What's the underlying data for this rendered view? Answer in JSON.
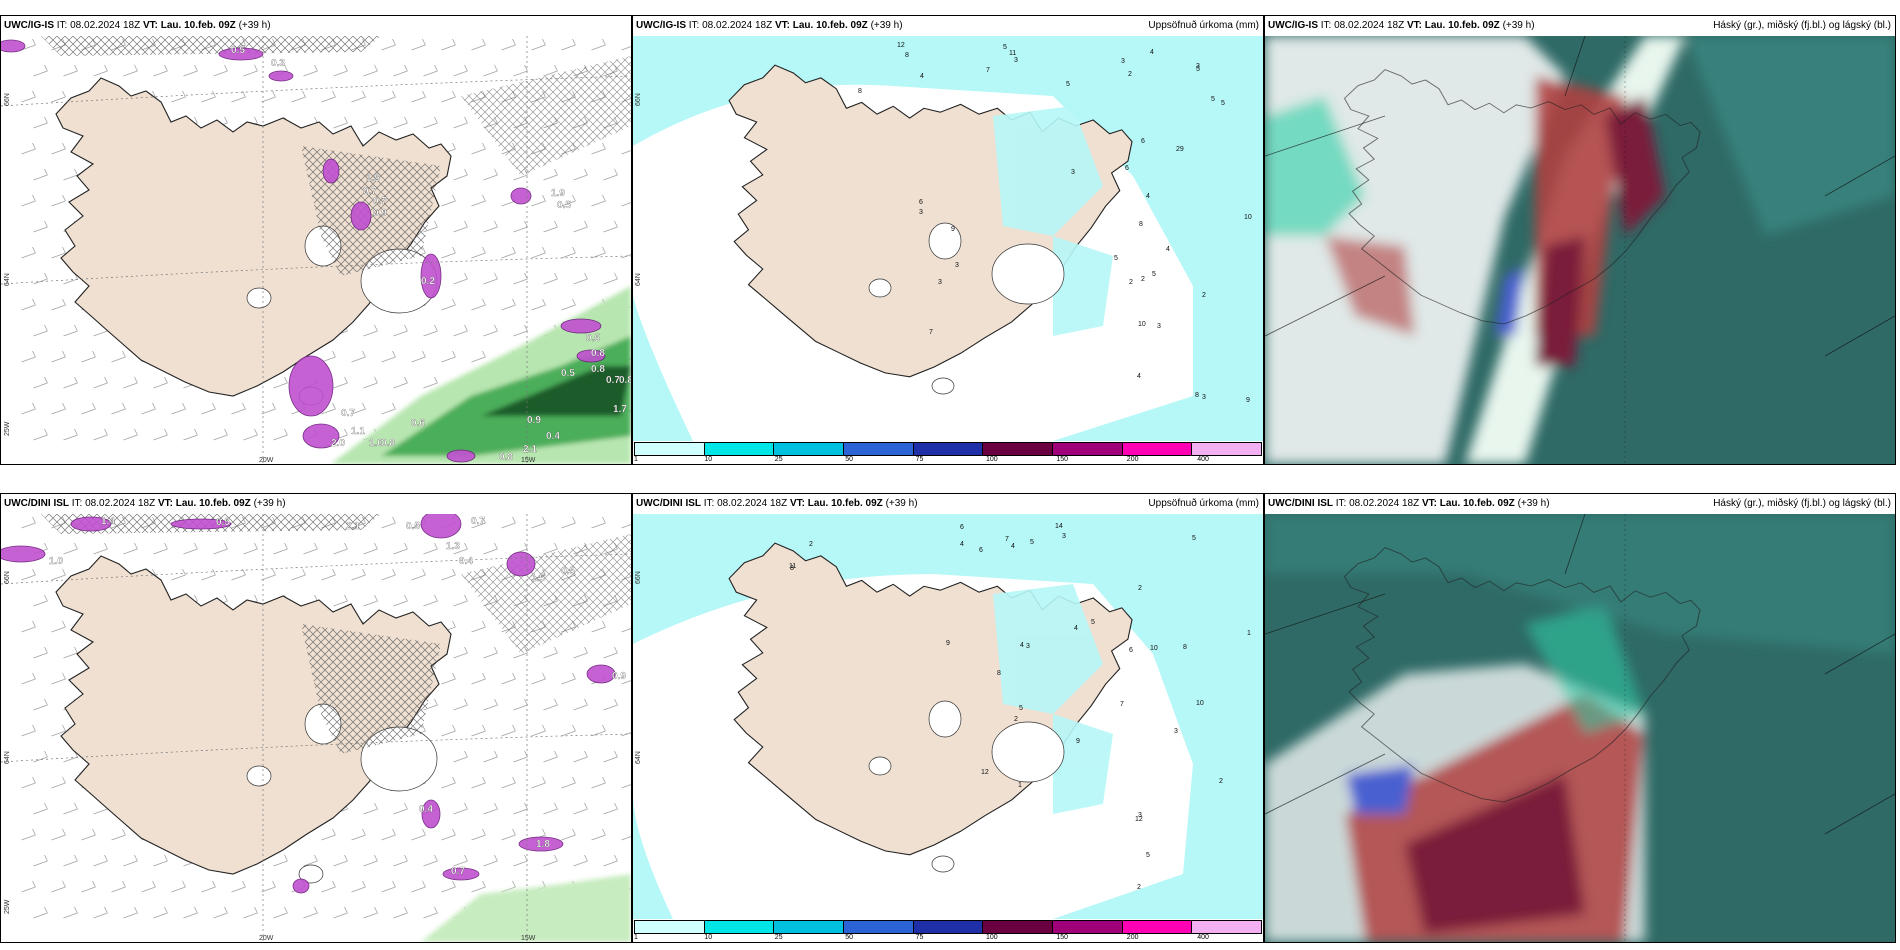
{
  "colors": {
    "land": "#efe0d2",
    "precip_light": "#b6f7f7",
    "hatch": "#555555",
    "purple": "#c050d0",
    "green": "#4cae5a",
    "cloud_dark": "#2f6a66",
    "cloud_red": "#b04040",
    "cloud_maroon": "#7a1a3a",
    "cloud_blue": "#4a60d0",
    "cloud_teal": "#2fd0a8"
  },
  "legend": {
    "colors": [
      "#cfffff",
      "#00e6e6",
      "#00c0e0",
      "#2b62d6",
      "#1e2fa8",
      "#6a0040",
      "#a00078",
      "#ff00b4",
      "#f2b0f2"
    ],
    "labels": [
      "1",
      "10",
      "25",
      "50",
      "75",
      "100",
      "150",
      "200",
      "400"
    ]
  },
  "rows": [
    {
      "model": "UWC/IG-IS",
      "panels": [
        {
          "name": "wind",
          "model": "UWC/IG-IS",
          "it": "IT: 08.02.2024 18Z",
          "vt": "VT: Lau. 10.feb. 09Z",
          "lead": "(+39 h)",
          "right": "",
          "lon_labels": [
            "20W",
            "15W"
          ],
          "lat_labels": [
            "66N",
            "64N",
            "25W"
          ],
          "values": [
            "0.5",
            "0.3",
            "1.5",
            "0.7",
            "0.7",
            "0.9",
            "1.9",
            "0.5",
            "0.2",
            "0.5",
            "0.8",
            "0.8",
            "0.5",
            "0.7",
            "0.8",
            "0.7",
            "1.1",
            "0.6",
            "1.7",
            "0.9",
            "0.4",
            "2.0",
            "1.0",
            "0.8",
            "2.1",
            "0.8"
          ]
        },
        {
          "name": "precip",
          "model": "UWC/IG-IS",
          "it": "IT: 08.02.2024 18Z",
          "vt": "VT: Lau. 10.feb. 09Z",
          "lead": "(+39 h)",
          "right": "Uppsöfnuð úrkoma (mm)",
          "lat_labels": [
            "66N",
            "64N"
          ],
          "values": [
            "8",
            "10",
            "3",
            "3",
            "4",
            "2",
            "4",
            "5",
            "2",
            "4",
            "4",
            "5",
            "3",
            "3",
            "3",
            "7",
            "5",
            "6",
            "12",
            "29",
            "10",
            "11",
            "4",
            "3",
            "3",
            "5",
            "7",
            "5",
            "8",
            "6",
            "8",
            "9",
            "9",
            "5",
            "8",
            "3",
            "5",
            "2",
            "6",
            "2",
            "3"
          ]
        },
        {
          "name": "cloud",
          "model": "UWC/IG-IS",
          "it": "IT: 08.02.2024 18Z",
          "vt": "VT: Lau. 10.feb. 09Z",
          "lead": "(+39 h)",
          "right": "Háský (gr.), miðský (fj.bl.) og lágský (bl.)"
        }
      ]
    },
    {
      "model": "UWC/DINI ISL",
      "panels": [
        {
          "name": "wind",
          "model": "UWC/DINI ISL",
          "it": "IT: 08.02.2024 18Z",
          "vt": "VT: Lau. 10.feb. 09Z",
          "lead": "(+39 h)",
          "right": "",
          "lon_labels": [
            "20W",
            "15W"
          ],
          "lat_labels": [
            "66N",
            "64N",
            "25W"
          ],
          "values": [
            "1.4",
            "1.0",
            "0.5",
            "2.1",
            "0.5",
            "0.7",
            "1.3",
            "0.4",
            "0.5",
            "1.5",
            "0.4",
            "0.9",
            "1.8",
            "0.7"
          ]
        },
        {
          "name": "precip",
          "model": "UWC/DINI ISL",
          "it": "IT: 08.02.2024 18Z",
          "vt": "VT: Lau. 10.feb. 09Z",
          "lead": "(+39 h)",
          "right": "Uppsöfnuð úrkoma (mm)",
          "lat_labels": [
            "66N",
            "64N"
          ],
          "values": [
            "6",
            "6",
            "5",
            "11",
            "10",
            "12",
            "14",
            "8",
            "4",
            "4",
            "2",
            "3",
            "2",
            "1",
            "2",
            "3",
            "2",
            "4",
            "7",
            "12",
            "8",
            "8",
            "5",
            "3",
            "5",
            "2",
            "9",
            "6",
            "7",
            "9",
            "5",
            "3",
            "1",
            "4",
            "10",
            "5"
          ]
        },
        {
          "name": "cloud",
          "model": "UWC/DINI ISL",
          "it": "IT: 08.02.2024 18Z",
          "vt": "VT: Lau. 10.feb. 09Z",
          "lead": "(+39 h)",
          "right": "Háský (gr.), miðský (fj.bl.) og lágský (bl.)"
        }
      ]
    }
  ]
}
